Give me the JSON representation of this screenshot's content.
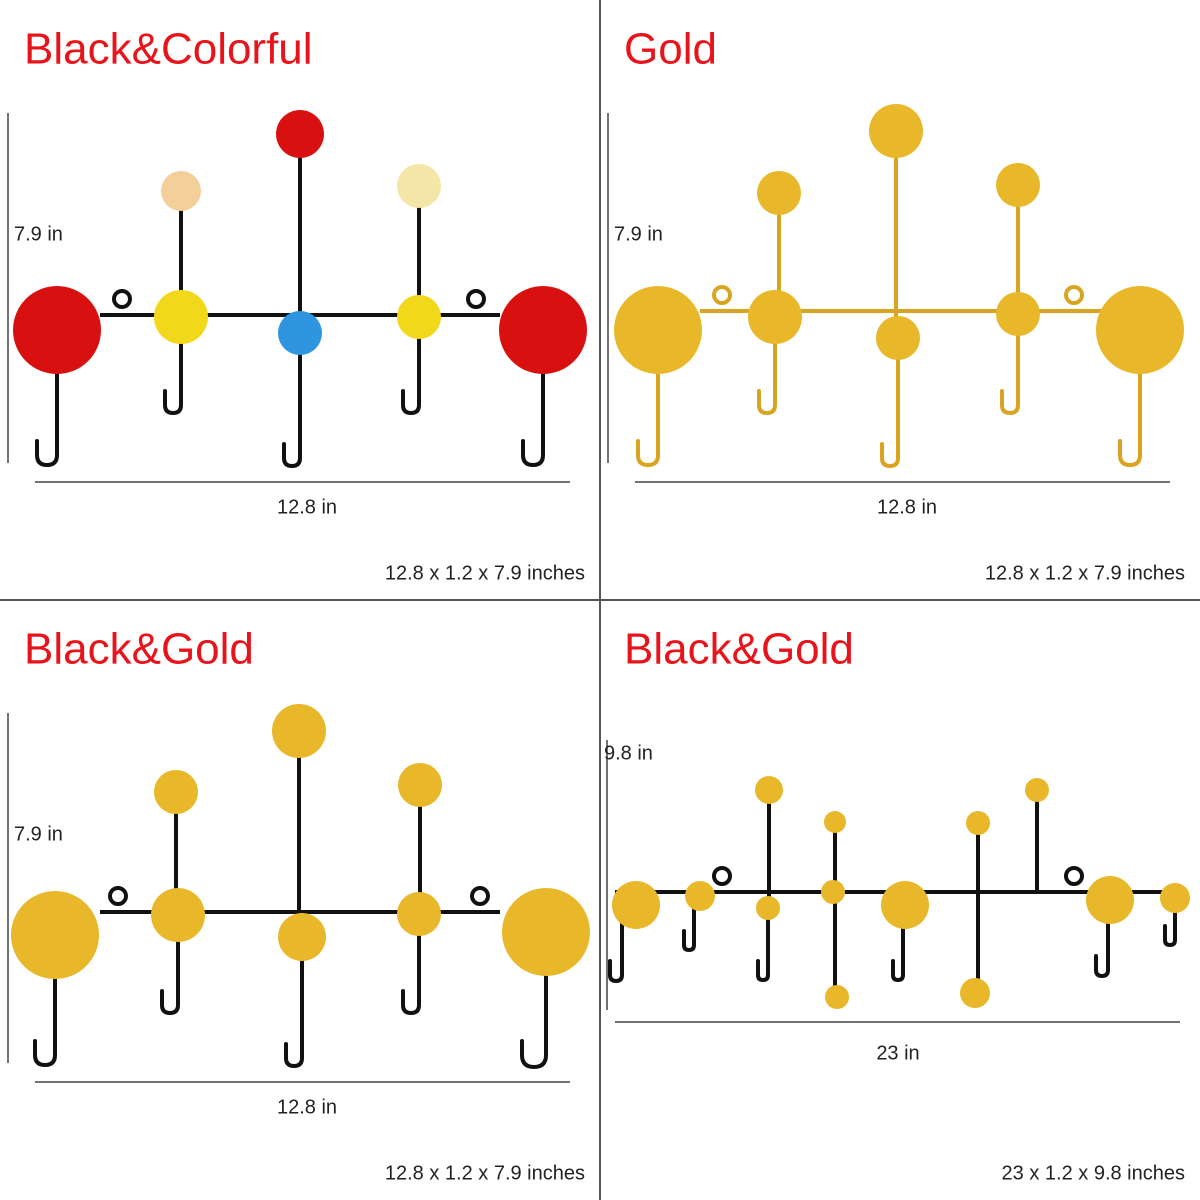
{
  "panels": [
    {
      "title": "Black&Colorful",
      "height": "7.9 in",
      "width": "12.8 in",
      "dimensions": "12.8 x 1.2 x 7.9 inches"
    },
    {
      "title": "Gold",
      "height": "7.9 in",
      "width": "12.8 in",
      "dimensions": "12.8 x 1.2 x 7.9 inches"
    },
    {
      "title": "Black&Gold",
      "height": "7.9 in",
      "width": "12.8 in",
      "dimensions": "12.8 x 1.2 x 7.9 inches"
    },
    {
      "title": "Black&Gold",
      "height": "9.8 in",
      "width": "23 in",
      "dimensions": "23 x 1.2 x 9.8 inches"
    }
  ]
}
